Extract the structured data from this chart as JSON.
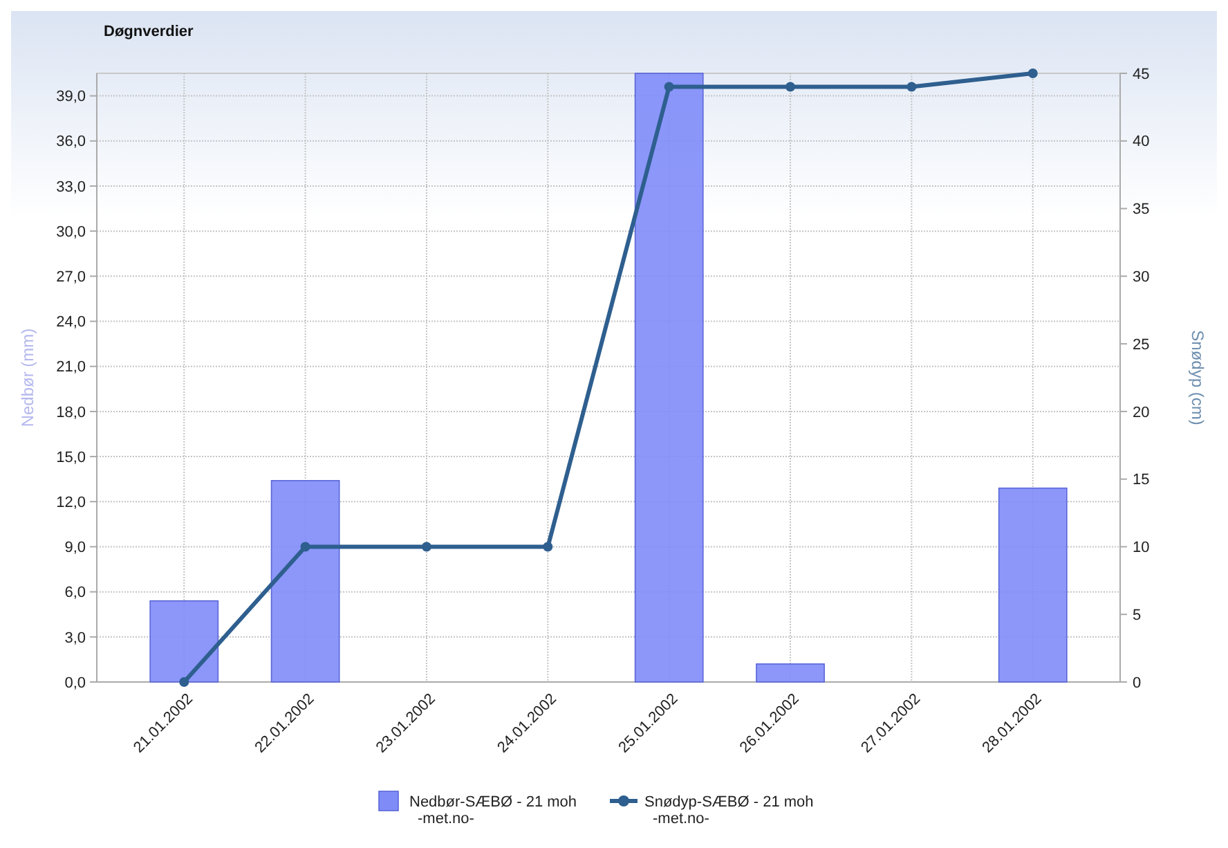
{
  "chart_data": {
    "type": "bar",
    "title": "Døgnverdier",
    "ylabel": "Nedbør (mm)",
    "y2label": "Snødyp (cm)",
    "categories": [
      "21.01.2002",
      "22.01.2002",
      "23.01.2002",
      "24.01.2002",
      "25.01.2002",
      "26.01.2002",
      "27.01.2002",
      "28.01.2002"
    ],
    "series": [
      {
        "name": "Nedbør-SÆBØ - 21 moh\n-met.no-",
        "color": "#7f8cf8",
        "values": [
          5.4,
          13.4,
          0,
          0,
          40.5,
          1.2,
          0,
          12.9
        ]
      },
      {
        "name": "Snødyp-SÆBØ - 21 moh\n-met.no-",
        "type": "line",
        "axis": "y2",
        "color": "#2e5f8f",
        "marker": "circle",
        "values": [
          0,
          10,
          10,
          10,
          44,
          44,
          44,
          45
        ]
      }
    ],
    "ylim": [
      0,
      40.5
    ],
    "yticks": [
      {
        "value": 0,
        "label": "0,0"
      },
      {
        "value": 3,
        "label": "3,0"
      },
      {
        "value": 6,
        "label": "6,0"
      },
      {
        "value": 9,
        "label": "9,0"
      },
      {
        "value": 12,
        "label": "12,0"
      },
      {
        "value": 15,
        "label": "15,0"
      },
      {
        "value": 18,
        "label": "18,0"
      },
      {
        "value": 21,
        "label": "21,0"
      },
      {
        "value": 24,
        "label": "24,0"
      },
      {
        "value": 27,
        "label": "27,0"
      },
      {
        "value": 30,
        "label": "30,0"
      },
      {
        "value": 33,
        "label": "33,0"
      },
      {
        "value": 36,
        "label": "36,0"
      },
      {
        "value": 39,
        "label": "39,0"
      }
    ],
    "y2lim": [
      0,
      45
    ],
    "y2ticks": [
      0,
      5,
      10,
      15,
      20,
      25,
      30,
      35,
      40,
      45
    ],
    "grid": true,
    "legend": "bottom"
  }
}
